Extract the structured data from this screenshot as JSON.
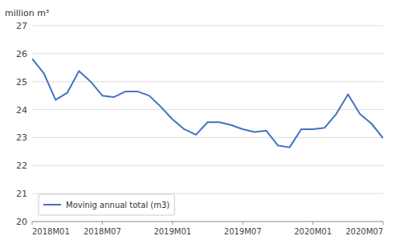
{
  "chart_data": {
    "type": "line",
    "y_label": "million m³",
    "categories": [
      "2018M01",
      null,
      null,
      null,
      null,
      null,
      "2018M07",
      null,
      null,
      null,
      null,
      null,
      "2019M01",
      null,
      null,
      null,
      null,
      null,
      "2019M07",
      null,
      null,
      null,
      null,
      null,
      "2020M01",
      null,
      null,
      null,
      null,
      null,
      "2020M07"
    ],
    "series": [
      {
        "name": "Movinig annual total (m3)",
        "color": "#4472C4",
        "values": [
          25.82,
          25.3,
          24.35,
          24.6,
          25.38,
          25.0,
          24.5,
          24.45,
          24.65,
          24.65,
          24.5,
          24.1,
          23.65,
          23.3,
          23.1,
          23.55,
          23.55,
          23.45,
          23.3,
          23.2,
          23.25,
          22.72,
          22.65,
          23.3,
          23.3,
          23.35,
          23.85,
          24.55,
          23.85,
          23.5,
          22.98
        ]
      }
    ],
    "ylim": [
      20,
      27
    ],
    "yticks": [
      20,
      21,
      22,
      23,
      24,
      25,
      26,
      27
    ],
    "grid": true,
    "legend": "lower left"
  }
}
